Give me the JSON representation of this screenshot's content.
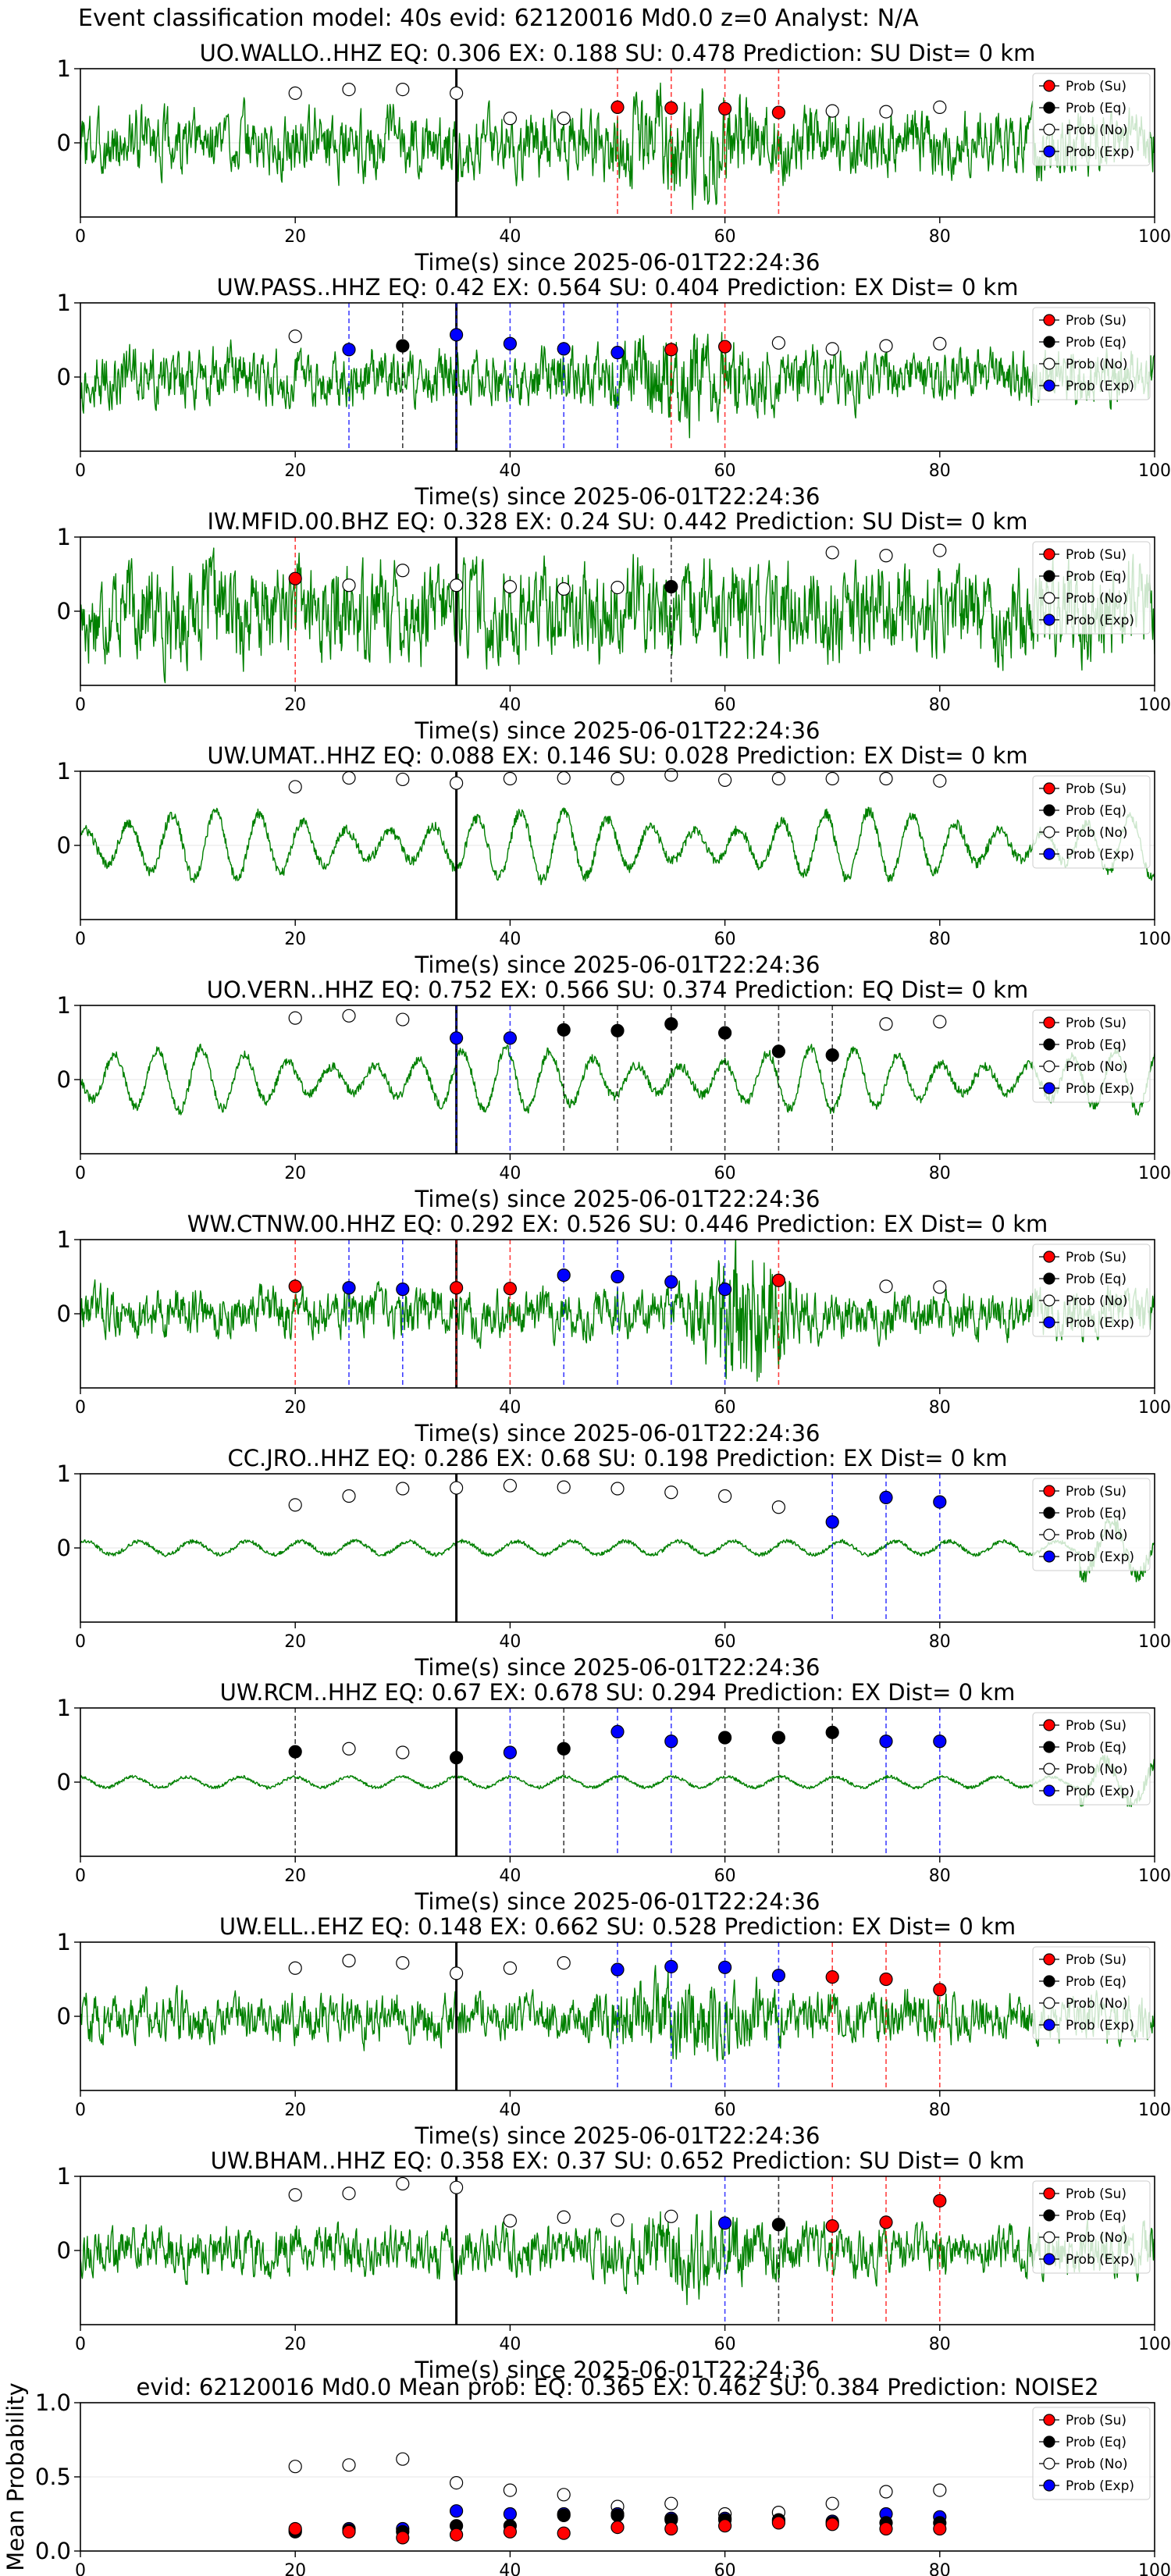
{
  "figure_title": "Event classification model: 40s evid: 62120016 Md0.0 z=0 Analyst: N/A",
  "legend_labels": [
    "Prob (Su)",
    "Prob (Eq)",
    "Prob (No)",
    "Prob (Exp)"
  ],
  "colors": {
    "su": "#ff0000",
    "eq": "#000000",
    "no": "#ffffff",
    "exp": "#0000ff",
    "trace": "#008000",
    "event_line": "#000000"
  },
  "chart_data": [
    {
      "type": "line",
      "title": "UO.WALLO..HHZ   EQ: 0.306  EX: 0.188  SU: 0.478   Prediction: SU    Dist= 0 km",
      "xlabel": "Time(s) since 2025-06-01T22:24:36",
      "ylabel": "",
      "xlim": [
        0,
        100
      ],
      "ylim": [
        -1,
        1
      ],
      "xticks": [
        0,
        20,
        40,
        60,
        80,
        100
      ],
      "yticks": [
        0,
        1
      ],
      "event_time": 35,
      "waveform": {
        "style": "broadband",
        "amp": 0.4
      },
      "points": [
        {
          "x": 20,
          "y": 0.67,
          "cls": "no"
        },
        {
          "x": 25,
          "y": 0.72,
          "cls": "no"
        },
        {
          "x": 30,
          "y": 0.72,
          "cls": "no"
        },
        {
          "x": 35,
          "y": 0.67,
          "cls": "no"
        },
        {
          "x": 40,
          "y": 0.33,
          "cls": "no"
        },
        {
          "x": 45,
          "y": 0.33,
          "cls": "no"
        },
        {
          "x": 50,
          "y": 0.48,
          "cls": "su"
        },
        {
          "x": 55,
          "y": 0.47,
          "cls": "su"
        },
        {
          "x": 60,
          "y": 0.46,
          "cls": "su"
        },
        {
          "x": 65,
          "y": 0.41,
          "cls": "su"
        },
        {
          "x": 70,
          "y": 0.43,
          "cls": "no"
        },
        {
          "x": 75,
          "y": 0.42,
          "cls": "no"
        },
        {
          "x": 80,
          "y": 0.48,
          "cls": "no"
        }
      ]
    },
    {
      "type": "line",
      "title": "UW.PASS..HHZ   EQ: 0.42  EX: 0.564  SU: 0.404   Prediction: EX    Dist= 0 km",
      "xlabel": "Time(s) since 2025-06-01T22:24:36",
      "ylabel": "",
      "xlim": [
        0,
        100
      ],
      "ylim": [
        -1,
        1
      ],
      "xticks": [
        0,
        20,
        40,
        60,
        80,
        100
      ],
      "yticks": [
        0,
        1
      ],
      "event_time": 35,
      "waveform": {
        "style": "broadband",
        "amp": 0.35
      },
      "points": [
        {
          "x": 20,
          "y": 0.55,
          "cls": "no"
        },
        {
          "x": 25,
          "y": 0.37,
          "cls": "exp"
        },
        {
          "x": 30,
          "y": 0.42,
          "cls": "eq"
        },
        {
          "x": 35,
          "y": 0.57,
          "cls": "exp"
        },
        {
          "x": 40,
          "y": 0.45,
          "cls": "exp"
        },
        {
          "x": 45,
          "y": 0.38,
          "cls": "exp"
        },
        {
          "x": 50,
          "y": 0.33,
          "cls": "exp"
        },
        {
          "x": 55,
          "y": 0.37,
          "cls": "su"
        },
        {
          "x": 60,
          "y": 0.41,
          "cls": "su"
        },
        {
          "x": 65,
          "y": 0.46,
          "cls": "no"
        },
        {
          "x": 70,
          "y": 0.38,
          "cls": "no"
        },
        {
          "x": 75,
          "y": 0.42,
          "cls": "no"
        },
        {
          "x": 80,
          "y": 0.45,
          "cls": "no"
        }
      ]
    },
    {
      "type": "line",
      "title": "IW.MFID.00.BHZ   EQ: 0.328  EX: 0.24  SU: 0.442   Prediction: SU    Dist= 0 km",
      "xlabel": "Time(s) since 2025-06-01T22:24:36",
      "ylabel": "",
      "xlim": [
        0,
        100
      ],
      "ylim": [
        -1,
        1
      ],
      "xticks": [
        0,
        20,
        40,
        60,
        80,
        100
      ],
      "yticks": [
        0,
        1
      ],
      "event_time": 35,
      "waveform": {
        "style": "noisy",
        "amp": 0.6
      },
      "points": [
        {
          "x": 20,
          "y": 0.44,
          "cls": "su"
        },
        {
          "x": 25,
          "y": 0.35,
          "cls": "no"
        },
        {
          "x": 30,
          "y": 0.55,
          "cls": "no"
        },
        {
          "x": 35,
          "y": 0.35,
          "cls": "no"
        },
        {
          "x": 40,
          "y": 0.33,
          "cls": "no"
        },
        {
          "x": 45,
          "y": 0.3,
          "cls": "no"
        },
        {
          "x": 50,
          "y": 0.32,
          "cls": "no"
        },
        {
          "x": 55,
          "y": 0.33,
          "cls": "eq"
        },
        {
          "x": 70,
          "y": 0.79,
          "cls": "no"
        },
        {
          "x": 75,
          "y": 0.75,
          "cls": "no"
        },
        {
          "x": 80,
          "y": 0.82,
          "cls": "no"
        }
      ]
    },
    {
      "type": "line",
      "title": "UW.UMAT..HHZ   EQ: 0.088  EX: 0.146  SU: 0.028   Prediction: EX    Dist= 0 km",
      "xlabel": "Time(s) since 2025-06-01T22:24:36",
      "ylabel": "",
      "xlim": [
        0,
        100
      ],
      "ylim": [
        -1,
        1
      ],
      "xticks": [
        0,
        20,
        40,
        60,
        80,
        100
      ],
      "yticks": [
        0,
        1
      ],
      "event_time": 35,
      "waveform": {
        "style": "oscillating",
        "amp": 0.55
      },
      "points": [
        {
          "x": 20,
          "y": 0.79,
          "cls": "no"
        },
        {
          "x": 25,
          "y": 0.91,
          "cls": "no"
        },
        {
          "x": 30,
          "y": 0.89,
          "cls": "no"
        },
        {
          "x": 35,
          "y": 0.84,
          "cls": "no"
        },
        {
          "x": 40,
          "y": 0.9,
          "cls": "no"
        },
        {
          "x": 45,
          "y": 0.91,
          "cls": "no"
        },
        {
          "x": 50,
          "y": 0.9,
          "cls": "no"
        },
        {
          "x": 55,
          "y": 0.95,
          "cls": "no"
        },
        {
          "x": 60,
          "y": 0.88,
          "cls": "no"
        },
        {
          "x": 65,
          "y": 0.9,
          "cls": "no"
        },
        {
          "x": 70,
          "y": 0.9,
          "cls": "no"
        },
        {
          "x": 75,
          "y": 0.9,
          "cls": "no"
        },
        {
          "x": 80,
          "y": 0.87,
          "cls": "no"
        }
      ]
    },
    {
      "type": "line",
      "title": "UO.VERN..HHZ   EQ: 0.752  EX: 0.566  SU: 0.374   Prediction: EQ    Dist= 0 km",
      "xlabel": "Time(s) since 2025-06-01T22:24:36",
      "ylabel": "",
      "xlim": [
        0,
        100
      ],
      "ylim": [
        -1,
        1
      ],
      "xticks": [
        0,
        20,
        40,
        60,
        80,
        100
      ],
      "yticks": [
        0,
        1
      ],
      "event_time": 35,
      "waveform": {
        "style": "oscillating",
        "amp": 0.5
      },
      "points": [
        {
          "x": 20,
          "y": 0.83,
          "cls": "no"
        },
        {
          "x": 25,
          "y": 0.86,
          "cls": "no"
        },
        {
          "x": 30,
          "y": 0.81,
          "cls": "no"
        },
        {
          "x": 35,
          "y": 0.56,
          "cls": "exp"
        },
        {
          "x": 40,
          "y": 0.56,
          "cls": "exp"
        },
        {
          "x": 45,
          "y": 0.67,
          "cls": "eq"
        },
        {
          "x": 50,
          "y": 0.66,
          "cls": "eq"
        },
        {
          "x": 55,
          "y": 0.75,
          "cls": "eq"
        },
        {
          "x": 60,
          "y": 0.63,
          "cls": "eq"
        },
        {
          "x": 65,
          "y": 0.38,
          "cls": "eq"
        },
        {
          "x": 70,
          "y": 0.33,
          "cls": "eq"
        },
        {
          "x": 75,
          "y": 0.75,
          "cls": "no"
        },
        {
          "x": 80,
          "y": 0.78,
          "cls": "no"
        }
      ]
    },
    {
      "type": "line",
      "title": "WW.CTNW.00.HHZ   EQ: 0.292  EX: 0.526  SU: 0.446   Prediction: EX    Dist= 0 km",
      "xlabel": "Time(s) since 2025-06-01T22:24:36",
      "ylabel": "",
      "xlim": [
        0,
        100
      ],
      "ylim": [
        -1,
        1
      ],
      "xticks": [
        0,
        20,
        40,
        60,
        80,
        100
      ],
      "yticks": [
        0,
        1
      ],
      "event_time": 35,
      "waveform": {
        "style": "burst",
        "amp": 0.3
      },
      "points": [
        {
          "x": 20,
          "y": 0.37,
          "cls": "su"
        },
        {
          "x": 25,
          "y": 0.35,
          "cls": "exp"
        },
        {
          "x": 30,
          "y": 0.33,
          "cls": "exp"
        },
        {
          "x": 35,
          "y": 0.35,
          "cls": "su"
        },
        {
          "x": 40,
          "y": 0.34,
          "cls": "su"
        },
        {
          "x": 45,
          "y": 0.52,
          "cls": "exp"
        },
        {
          "x": 50,
          "y": 0.5,
          "cls": "exp"
        },
        {
          "x": 55,
          "y": 0.43,
          "cls": "exp"
        },
        {
          "x": 60,
          "y": 0.33,
          "cls": "exp"
        },
        {
          "x": 65,
          "y": 0.45,
          "cls": "su"
        },
        {
          "x": 75,
          "y": 0.37,
          "cls": "no"
        },
        {
          "x": 80,
          "y": 0.36,
          "cls": "no"
        }
      ]
    },
    {
      "type": "line",
      "title": "CC.JRO..HHZ   EQ: 0.286  EX: 0.68  SU: 0.198   Prediction: EX    Dist= 0 km",
      "xlabel": "Time(s) since 2025-06-01T22:24:36",
      "ylabel": "",
      "xlim": [
        0,
        100
      ],
      "ylim": [
        -1,
        1
      ],
      "xticks": [
        0,
        20,
        40,
        60,
        80,
        100
      ],
      "yticks": [
        0,
        1
      ],
      "event_time": 35,
      "waveform": {
        "style": "quiet",
        "amp": 0.15
      },
      "points": [
        {
          "x": 20,
          "y": 0.58,
          "cls": "no"
        },
        {
          "x": 25,
          "y": 0.7,
          "cls": "no"
        },
        {
          "x": 30,
          "y": 0.8,
          "cls": "no"
        },
        {
          "x": 35,
          "y": 0.81,
          "cls": "no"
        },
        {
          "x": 40,
          "y": 0.84,
          "cls": "no"
        },
        {
          "x": 45,
          "y": 0.82,
          "cls": "no"
        },
        {
          "x": 50,
          "y": 0.8,
          "cls": "no"
        },
        {
          "x": 55,
          "y": 0.75,
          "cls": "no"
        },
        {
          "x": 60,
          "y": 0.7,
          "cls": "no"
        },
        {
          "x": 65,
          "y": 0.55,
          "cls": "no"
        },
        {
          "x": 70,
          "y": 0.35,
          "cls": "exp"
        },
        {
          "x": 75,
          "y": 0.68,
          "cls": "exp"
        },
        {
          "x": 80,
          "y": 0.62,
          "cls": "exp"
        }
      ]
    },
    {
      "type": "line",
      "title": "UW.RCM..HHZ   EQ: 0.67  EX: 0.678  SU: 0.294   Prediction: EX    Dist= 0 km",
      "xlabel": "Time(s) since 2025-06-01T22:24:36",
      "ylabel": "",
      "xlim": [
        0,
        100
      ],
      "ylim": [
        -1,
        1
      ],
      "xticks": [
        0,
        20,
        40,
        60,
        80,
        100
      ],
      "yticks": [
        0,
        1
      ],
      "event_time": 35,
      "waveform": {
        "style": "quiet",
        "amp": 0.12
      },
      "points": [
        {
          "x": 20,
          "y": 0.41,
          "cls": "eq"
        },
        {
          "x": 25,
          "y": 0.45,
          "cls": "no"
        },
        {
          "x": 30,
          "y": 0.4,
          "cls": "no"
        },
        {
          "x": 35,
          "y": 0.33,
          "cls": "eq"
        },
        {
          "x": 40,
          "y": 0.4,
          "cls": "exp"
        },
        {
          "x": 45,
          "y": 0.45,
          "cls": "eq"
        },
        {
          "x": 50,
          "y": 0.68,
          "cls": "exp"
        },
        {
          "x": 55,
          "y": 0.55,
          "cls": "exp"
        },
        {
          "x": 60,
          "y": 0.6,
          "cls": "eq"
        },
        {
          "x": 65,
          "y": 0.6,
          "cls": "eq"
        },
        {
          "x": 70,
          "y": 0.67,
          "cls": "eq"
        },
        {
          "x": 75,
          "y": 0.55,
          "cls": "exp"
        },
        {
          "x": 80,
          "y": 0.55,
          "cls": "exp"
        }
      ]
    },
    {
      "type": "line",
      "title": "UW.ELL..EHZ   EQ: 0.148  EX: 0.662  SU: 0.528   Prediction: EX    Dist= 0 km",
      "xlabel": "Time(s) since 2025-06-01T22:24:36",
      "ylabel": "",
      "xlim": [
        0,
        100
      ],
      "ylim": [
        -1,
        1
      ],
      "xticks": [
        0,
        20,
        40,
        60,
        80,
        100
      ],
      "yticks": [
        0,
        1
      ],
      "event_time": 35,
      "waveform": {
        "style": "broadband",
        "amp": 0.3
      },
      "points": [
        {
          "x": 20,
          "y": 0.65,
          "cls": "no"
        },
        {
          "x": 25,
          "y": 0.75,
          "cls": "no"
        },
        {
          "x": 30,
          "y": 0.72,
          "cls": "no"
        },
        {
          "x": 35,
          "y": 0.58,
          "cls": "no"
        },
        {
          "x": 40,
          "y": 0.65,
          "cls": "no"
        },
        {
          "x": 45,
          "y": 0.72,
          "cls": "no"
        },
        {
          "x": 50,
          "y": 0.63,
          "cls": "exp"
        },
        {
          "x": 55,
          "y": 0.67,
          "cls": "exp"
        },
        {
          "x": 60,
          "y": 0.66,
          "cls": "exp"
        },
        {
          "x": 65,
          "y": 0.55,
          "cls": "exp"
        },
        {
          "x": 70,
          "y": 0.53,
          "cls": "su"
        },
        {
          "x": 75,
          "y": 0.5,
          "cls": "su"
        },
        {
          "x": 80,
          "y": 0.36,
          "cls": "su"
        }
      ]
    },
    {
      "type": "line",
      "title": "UW.BHAM..HHZ   EQ: 0.358  EX: 0.37  SU: 0.652   Prediction: SU    Dist= 0 km",
      "xlabel": "Time(s) since 2025-06-01T22:24:36",
      "ylabel": "",
      "xlim": [
        0,
        100
      ],
      "ylim": [
        -1,
        1
      ],
      "xticks": [
        0,
        20,
        40,
        60,
        80,
        100
      ],
      "yticks": [
        0,
        1
      ],
      "event_time": 35,
      "waveform": {
        "style": "broadband",
        "amp": 0.3
      },
      "points": [
        {
          "x": 20,
          "y": 0.75,
          "cls": "no"
        },
        {
          "x": 25,
          "y": 0.77,
          "cls": "no"
        },
        {
          "x": 30,
          "y": 0.9,
          "cls": "no"
        },
        {
          "x": 35,
          "y": 0.85,
          "cls": "no"
        },
        {
          "x": 40,
          "y": 0.4,
          "cls": "no"
        },
        {
          "x": 45,
          "y": 0.45,
          "cls": "no"
        },
        {
          "x": 50,
          "y": 0.41,
          "cls": "no"
        },
        {
          "x": 55,
          "y": 0.46,
          "cls": "no"
        },
        {
          "x": 60,
          "y": 0.37,
          "cls": "exp"
        },
        {
          "x": 65,
          "y": 0.35,
          "cls": "eq"
        },
        {
          "x": 70,
          "y": 0.33,
          "cls": "su"
        },
        {
          "x": 75,
          "y": 0.38,
          "cls": "su"
        },
        {
          "x": 80,
          "y": 0.67,
          "cls": "su"
        }
      ]
    },
    {
      "type": "scatter",
      "title": "evid: 62120016  Md0.0   Mean prob:   EQ: 0.365  EX: 0.462  SU: 0.384   Prediction: NOISE2",
      "xlabel": "",
      "ylabel": "Mean Probability",
      "xlim": [
        0,
        100
      ],
      "ylim": [
        0,
        1
      ],
      "xticks": [
        0,
        20,
        40,
        60,
        80,
        100
      ],
      "yticks": [
        0.0,
        0.5,
        1.0
      ],
      "series": [
        {
          "cls": "no",
          "x": [
            20,
            25,
            30,
            35,
            40,
            45,
            50,
            55,
            60,
            65,
            70,
            75,
            80
          ],
          "values": [
            0.57,
            0.58,
            0.62,
            0.46,
            0.41,
            0.38,
            0.3,
            0.32,
            0.25,
            0.26,
            0.32,
            0.4,
            0.41
          ]
        },
        {
          "cls": "exp",
          "x": [
            20,
            25,
            30,
            35,
            40,
            45,
            50,
            55,
            60,
            65,
            70,
            75,
            80
          ],
          "values": [
            0.14,
            0.15,
            0.15,
            0.27,
            0.25,
            0.25,
            0.25,
            0.22,
            0.22,
            0.2,
            0.2,
            0.25,
            0.23
          ]
        },
        {
          "cls": "eq",
          "x": [
            20,
            25,
            30,
            35,
            40,
            45,
            50,
            55,
            60,
            65,
            70,
            75,
            80
          ],
          "values": [
            0.13,
            0.14,
            0.13,
            0.17,
            0.17,
            0.24,
            0.24,
            0.21,
            0.21,
            0.21,
            0.19,
            0.19,
            0.19
          ]
        },
        {
          "cls": "su",
          "x": [
            20,
            25,
            30,
            35,
            40,
            45,
            50,
            55,
            60,
            65,
            70,
            75,
            80
          ],
          "values": [
            0.15,
            0.13,
            0.09,
            0.11,
            0.13,
            0.12,
            0.16,
            0.15,
            0.17,
            0.19,
            0.18,
            0.15,
            0.15
          ]
        }
      ]
    }
  ]
}
